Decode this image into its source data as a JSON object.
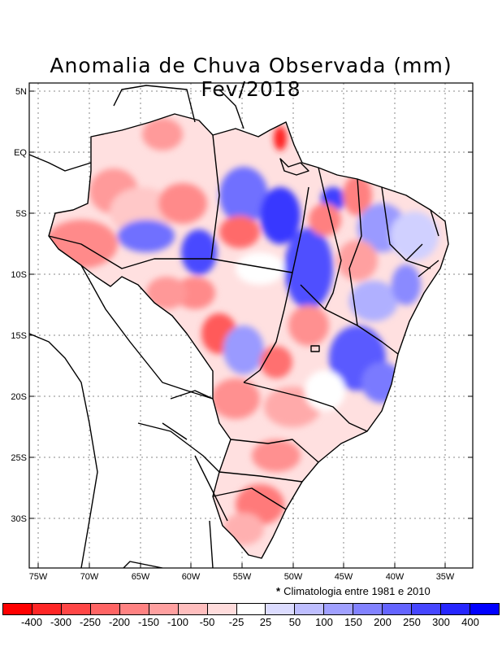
{
  "title": "Anomalia de Chuva Observada (mm) Fev/2018",
  "footnote": {
    "symbol": "*",
    "text": "Climatologia entre 1981 e 2010"
  },
  "lat_labels": [
    "5N",
    "EQ",
    "5S",
    "10S",
    "15S",
    "20S",
    "25S",
    "30S"
  ],
  "lon_labels": [
    "75W",
    "70W",
    "65W",
    "60W",
    "55W",
    "50W",
    "45W",
    "40W",
    "35W"
  ],
  "legend": {
    "colors": [
      "#ff0000",
      "#ff2626",
      "#ff4646",
      "#ff6464",
      "#ff8282",
      "#ffa0a0",
      "#ffbebe",
      "#ffdcdc",
      "#ffffff",
      "#dcdcff",
      "#bebeff",
      "#a0a0ff",
      "#8282ff",
      "#6464ff",
      "#4646ff",
      "#2626ff",
      "#0000ff"
    ],
    "labels": [
      "-400",
      "-300",
      "-250",
      "-200",
      "-150",
      "-100",
      "-50",
      "-25",
      "25",
      "50",
      "100",
      "150",
      "200",
      "250",
      "300",
      "400"
    ]
  },
  "colors": {
    "positive_anomaly": "#4a4aff",
    "negative_anomaly": "#ff5a5a"
  }
}
